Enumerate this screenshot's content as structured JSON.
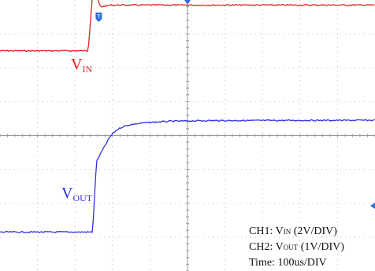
{
  "chart_data": {
    "type": "line",
    "title": "",
    "xlabel": "",
    "ylabel": "",
    "grid": true,
    "x_unit": "us",
    "x_divisions": 10,
    "y_divisions": 8,
    "x_range_us": [
      -255,
      745
    ],
    "series": [
      {
        "name": "VIN",
        "channel": "CH1",
        "color": "#e02020",
        "volts_per_div": 2,
        "points": [
          {
            "t": -255,
            "v": 5.0
          },
          {
            "t": -20,
            "v": 5.0
          },
          {
            "t": -8,
            "v": 8.4
          },
          {
            "t": -2,
            "v": 9.4
          },
          {
            "t": 3,
            "v": 8.6
          },
          {
            "t": 8,
            "v": 7.8
          },
          {
            "t": 14,
            "v": 7.6
          },
          {
            "t": 40,
            "v": 7.7
          },
          {
            "t": 745,
            "v": 7.7
          }
        ]
      },
      {
        "name": "VOUT",
        "channel": "CH2",
        "color": "#3030e0",
        "volts_per_div": 1,
        "points": [
          {
            "t": -255,
            "v": -2.85
          },
          {
            "t": -8,
            "v": -2.85
          },
          {
            "t": 0,
            "v": -1.2
          },
          {
            "t": 3,
            "v": -0.75
          },
          {
            "t": 8,
            "v": -0.65
          },
          {
            "t": 15,
            "v": -0.5
          },
          {
            "t": 25,
            "v": -0.3
          },
          {
            "t": 35,
            "v": -0.1
          },
          {
            "t": 45,
            "v": 0.05
          },
          {
            "t": 55,
            "v": 0.15
          },
          {
            "t": 65,
            "v": 0.22
          },
          {
            "t": 75,
            "v": 0.27
          },
          {
            "t": 90,
            "v": 0.31
          },
          {
            "t": 105,
            "v": 0.34
          },
          {
            "t": 125,
            "v": 0.37
          },
          {
            "t": 150,
            "v": 0.39
          },
          {
            "t": 200,
            "v": 0.42
          },
          {
            "t": 300,
            "v": 0.44
          },
          {
            "t": 745,
            "v": 0.45
          }
        ]
      }
    ],
    "annotations": {
      "vin_label": {
        "main": "V",
        "sub": "IN"
      },
      "vout_label": {
        "main": "V",
        "sub": "OUT"
      }
    },
    "legend": {
      "ch1": {
        "prefix": "CH1: V",
        "sub": "IN",
        "suffix": " (2V/DIV)"
      },
      "ch2": {
        "prefix": "CH2: V",
        "sub": "OUT",
        "suffix": " (1V/DIV)"
      },
      "time": "Time:  100us/DIV"
    }
  }
}
